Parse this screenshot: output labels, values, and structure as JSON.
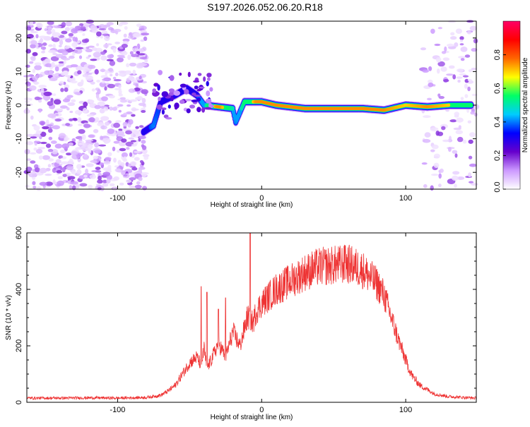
{
  "title": "S197.2026.052.06.20.R18",
  "chart_data": [
    {
      "type": "heatmap",
      "xlabel": "Height of straight line (km)",
      "ylabel": "Frequency (Hz)",
      "xlim": [
        -163,
        149
      ],
      "ylim": [
        -25,
        25
      ],
      "xticks": [
        -100,
        0,
        100
      ],
      "yticks": [
        -20,
        -10,
        0,
        10,
        20
      ],
      "colorbar": {
        "label": "Normalized spectral amplitude",
        "range": [
          0,
          1
        ],
        "ticks": [
          0.0,
          0.2,
          0.4,
          0.6,
          0.8
        ],
        "tick_labels": [
          "0.0",
          "0.2",
          "0.4",
          "0.6",
          "0.8"
        ],
        "colors": [
          "#ffffff",
          "#cc99ff",
          "#6600cc",
          "#0000ff",
          "#00ccff",
          "#00ff66",
          "#ffff00",
          "#ff6600",
          "#ff0000",
          "#ff0066"
        ]
      },
      "noise_regions": [
        {
          "x": [
            -163,
            -80
          ],
          "density": 1.0
        },
        {
          "x": [
            112,
            149
          ],
          "density": 0.35
        }
      ],
      "signal_path": [
        {
          "x": -82,
          "f": -8,
          "amp": 0.3
        },
        {
          "x": -75,
          "f": -6,
          "amp": 0.4
        },
        {
          "x": -70,
          "f": 1,
          "amp": 0.35
        },
        {
          "x": -65,
          "f": 2,
          "amp": 0.3
        },
        {
          "x": -60,
          "f": 3,
          "amp": 0.35
        },
        {
          "x": -52,
          "f": 5,
          "amp": 0.3
        },
        {
          "x": -45,
          "f": 3,
          "amp": 0.35
        },
        {
          "x": -40,
          "f": 0,
          "amp": 0.45
        },
        {
          "x": -30,
          "f": -0.5,
          "amp": 0.8
        },
        {
          "x": -20,
          "f": -1,
          "amp": 0.5
        },
        {
          "x": -18,
          "f": -5,
          "amp": 0.4
        },
        {
          "x": -12,
          "f": 1,
          "amp": 0.55
        },
        {
          "x": 0,
          "f": 1,
          "amp": 0.85
        },
        {
          "x": 10,
          "f": 0,
          "amp": 0.8
        },
        {
          "x": 30,
          "f": -1,
          "amp": 0.8
        },
        {
          "x": 55,
          "f": -1,
          "amp": 0.75
        },
        {
          "x": 70,
          "f": -1,
          "amp": 0.8
        },
        {
          "x": 85,
          "f": -1.5,
          "amp": 0.75
        },
        {
          "x": 100,
          "f": 0,
          "amp": 0.7
        },
        {
          "x": 115,
          "f": -0.5,
          "amp": 0.75
        },
        {
          "x": 130,
          "f": 0,
          "amp": 0.7
        },
        {
          "x": 146,
          "f": 0,
          "amp": 0.6
        }
      ]
    },
    {
      "type": "line",
      "xlabel": "Height of straight line (km)",
      "ylabel": "SNR (10 * v/v)",
      "xlim": [
        -163,
        149
      ],
      "ylim": [
        0,
        600
      ],
      "xticks": [
        -100,
        0,
        100
      ],
      "yticks": [
        0,
        200,
        400,
        600
      ],
      "series": [
        {
          "name": "SNR",
          "color": "#ee3333",
          "x": [
            -163,
            -140,
            -120,
            -100,
            -90,
            -80,
            -70,
            -65,
            -60,
            -55,
            -50,
            -45,
            -42,
            -40,
            -38,
            -35,
            -30,
            -25,
            -20,
            -15,
            -10,
            -8,
            -6,
            -4,
            0,
            10,
            20,
            30,
            40,
            50,
            60,
            70,
            80,
            85,
            90,
            95,
            100,
            103,
            105,
            110,
            120,
            130,
            149
          ],
          "values": [
            15,
            15,
            16,
            15,
            16,
            17,
            25,
            40,
            60,
            100,
            140,
            160,
            130,
            190,
            120,
            150,
            210,
            160,
            250,
            200,
            300,
            300,
            280,
            320,
            350,
            400,
            430,
            460,
            480,
            485,
            490,
            470,
            420,
            380,
            300,
            220,
            150,
            110,
            90,
            60,
            30,
            20,
            15
          ],
          "spikes": [
            {
              "x": -42,
              "y": 410
            },
            {
              "x": -38,
              "y": 390
            },
            {
              "x": -30,
              "y": 330
            },
            {
              "x": -25,
              "y": 370
            },
            {
              "x": -8,
              "y": 610
            },
            {
              "x": 58,
              "y": 555
            }
          ]
        }
      ]
    }
  ]
}
